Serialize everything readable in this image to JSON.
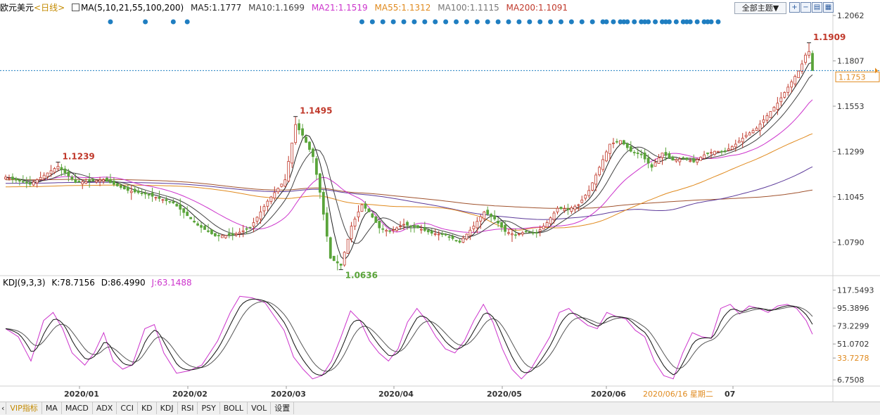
{
  "header": {
    "symbol": "欧元美元",
    "period": "<日线>",
    "ma_label": "MA(5,10,21,55,100,200)",
    "ma5": "MA5:1.1777",
    "ma10": "MA10:1.1699",
    "ma21": "MA21:1.1519",
    "ma55": "MA55:1.1312",
    "ma100": "MA100:1.1115",
    "ma200": "MA200:1.1091",
    "theme_button": "全部主题▼",
    "tool_icons": [
      "zoom-in-icon",
      "zoom-out-icon",
      "chart-icon",
      "grid-icon",
      "expand-icon"
    ]
  },
  "kdj_header": {
    "title": "KDJ(9,3,3)",
    "k": "K:78.7156",
    "d": "D:86.4990",
    "j": "J:63.1488"
  },
  "tabs": [
    "VIP指标",
    "MA",
    "MACD",
    "ADX",
    "CCI",
    "KD",
    "KDJ",
    "RSI",
    "PSY",
    "BOLL",
    "VOL",
    "设置"
  ],
  "colors": {
    "up": "#c0392b",
    "down": "#5aa43a",
    "ma5": "#222222",
    "ma10": "#444444",
    "ma21": "#cc33cc",
    "ma55": "#e08a1e",
    "ma100": "#5c3a9a",
    "ma200": "#a0522d",
    "dots": "#1f7ec1",
    "price_line": "#1f7ec1",
    "current": "#e08a1e",
    "kdj_j": "#cc33cc"
  },
  "chart_data": [
    {
      "type": "candlestick",
      "title": "欧元美元 <日线>",
      "series_names": [
        "MA5",
        "MA10",
        "MA21",
        "MA55",
        "MA100",
        "MA200"
      ],
      "y_ticks": [
        1.2062,
        1.1807,
        1.1553,
        1.1299,
        1.1045,
        1.079
      ],
      "ylim": [
        1.061,
        1.2062
      ],
      "current_price": 1.1753,
      "current_price_label": "1.1753",
      "annotations": [
        {
          "label": "1.1239",
          "value": 1.1239,
          "date": "2020/01/08",
          "type": "high"
        },
        {
          "label": "1.1495",
          "value": 1.1495,
          "date": "2020/03/09",
          "type": "high"
        },
        {
          "label": "1.0636",
          "value": 1.0636,
          "date": "2020/03/20",
          "type": "low"
        },
        {
          "label": "1.1909",
          "value": 1.1909,
          "date": "2020/07/31",
          "type": "high"
        }
      ],
      "x_labels": [
        "2020/01",
        "2020/02",
        "2020/03",
        "2020/04",
        "2020/05",
        "2020/06",
        "2020/07"
      ],
      "cursor_date_label": "2020/06/16 星期二",
      "close_anchors": [
        [
          0,
          1.1155
        ],
        [
          7,
          1.1115
        ],
        [
          15,
          1.1216
        ],
        [
          20,
          1.1125
        ],
        [
          28,
          1.114
        ],
        [
          35,
          1.108
        ],
        [
          40,
          1.106
        ],
        [
          48,
          1.101
        ],
        [
          55,
          1.0885
        ],
        [
          60,
          1.0825
        ],
        [
          65,
          1.083
        ],
        [
          70,
          1.087
        ],
        [
          75,
          1.102
        ],
        [
          80,
          1.114
        ],
        [
          83,
          1.145
        ],
        [
          85,
          1.139
        ],
        [
          88,
          1.127
        ],
        [
          90,
          1.107
        ],
        [
          93,
          1.07
        ],
        [
          96,
          1.066
        ],
        [
          99,
          1.088
        ],
        [
          102,
          1.1
        ],
        [
          104,
          1.096
        ],
        [
          107,
          1.087
        ],
        [
          110,
          1.085
        ],
        [
          114,
          1.089
        ],
        [
          118,
          1.087
        ],
        [
          122,
          1.084
        ],
        [
          126,
          1.083
        ],
        [
          130,
          1.079
        ],
        [
          134,
          1.088
        ],
        [
          137,
          1.096
        ],
        [
          140,
          1.092
        ],
        [
          143,
          1.085
        ],
        [
          146,
          1.083
        ],
        [
          149,
          1.085
        ],
        [
          152,
          1.084
        ],
        [
          155,
          1.09
        ],
        [
          158,
          1.098
        ],
        [
          161,
          1.0975
        ],
        [
          164,
          1.1
        ],
        [
          167,
          1.108
        ],
        [
          170,
          1.121
        ],
        [
          173,
          1.134
        ],
        [
          176,
          1.136
        ],
        [
          179,
          1.13
        ],
        [
          182,
          1.128
        ],
        [
          185,
          1.121
        ],
        [
          188,
          1.129
        ],
        [
          191,
          1.125
        ],
        [
          194,
          1.126
        ],
        [
          197,
          1.124
        ],
        [
          200,
          1.128
        ],
        [
          203,
          1.13
        ],
        [
          206,
          1.13
        ],
        [
          209,
          1.134
        ],
        [
          212,
          1.139
        ],
        [
          215,
          1.143
        ],
        [
          218,
          1.15
        ],
        [
          221,
          1.157
        ],
        [
          224,
          1.166
        ],
        [
          227,
          1.175
        ],
        [
          228,
          1.179
        ],
        [
          229,
          1.184
        ],
        [
          230,
          1.186
        ],
        [
          231,
          1.1753
        ]
      ],
      "signal_dots_count": 50
    },
    {
      "type": "line",
      "title": "KDJ(9,3,3)",
      "series_names": [
        "K",
        "D",
        "J"
      ],
      "y_ticks": [
        117.5493,
        95.3896,
        73.2299,
        51.0702,
        33.7278,
        6.7508
      ],
      "ylim": [
        0,
        125
      ],
      "j_anchors": [
        [
          0,
          70
        ],
        [
          4,
          60
        ],
        [
          8,
          30
        ],
        [
          12,
          80
        ],
        [
          15,
          90
        ],
        [
          18,
          70
        ],
        [
          21,
          40
        ],
        [
          25,
          25
        ],
        [
          28,
          40
        ],
        [
          31,
          65
        ],
        [
          34,
          30
        ],
        [
          37,
          20
        ],
        [
          40,
          25
        ],
        [
          44,
          70
        ],
        [
          47,
          75
        ],
        [
          50,
          40
        ],
        [
          54,
          15
        ],
        [
          58,
          18
        ],
        [
          62,
          25
        ],
        [
          67,
          55
        ],
        [
          71,
          90
        ],
        [
          74,
          110
        ],
        [
          78,
          108
        ],
        [
          82,
          102
        ],
        [
          85,
          85
        ],
        [
          88,
          68
        ],
        [
          91,
          35
        ],
        [
          94,
          20
        ],
        [
          97,
          8
        ],
        [
          100,
          12
        ],
        [
          103,
          30
        ],
        [
          106,
          60
        ],
        [
          109,
          92
        ],
        [
          112,
          80
        ],
        [
          115,
          55
        ],
        [
          118,
          40
        ],
        [
          121,
          30
        ],
        [
          124,
          45
        ],
        [
          127,
          78
        ],
        [
          130,
          95
        ],
        [
          133,
          80
        ],
        [
          136,
          60
        ],
        [
          139,
          45
        ],
        [
          142,
          40
        ],
        [
          145,
          55
        ],
        [
          148,
          80
        ],
        [
          151,
          100
        ],
        [
          154,
          78
        ],
        [
          157,
          45
        ],
        [
          160,
          20
        ],
        [
          163,
          8
        ],
        [
          166,
          20
        ],
        [
          169,
          40
        ],
        [
          172,
          60
        ],
        [
          175,
          90
        ],
        [
          178,
          95
        ],
        [
          181,
          83
        ],
        [
          184,
          74
        ],
        [
          187,
          70
        ],
        [
          190,
          90
        ],
        [
          193,
          85
        ],
        [
          196,
          82
        ],
        [
          199,
          68
        ],
        [
          202,
          60
        ],
        [
          205,
          30
        ],
        [
          208,
          12
        ],
        [
          211,
          8
        ],
        [
          214,
          40
        ],
        [
          217,
          65
        ],
        [
          220,
          60
        ],
        [
          223,
          58
        ],
        [
          226,
          95
        ],
        [
          229,
          100
        ],
        [
          232,
          88
        ],
        [
          235,
          98
        ],
        [
          238,
          95
        ],
        [
          241,
          90
        ],
        [
          244,
          98
        ],
        [
          247,
          100
        ],
        [
          250,
          95
        ],
        [
          253,
          80
        ],
        [
          255,
          63.1488
        ]
      ]
    }
  ]
}
